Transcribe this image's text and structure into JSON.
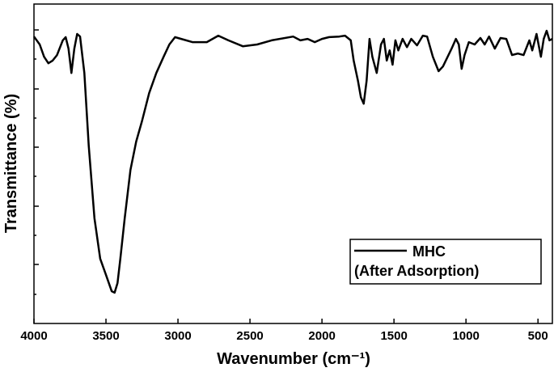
{
  "chart_data": {
    "type": "line",
    "x_label": "Wavenumber (cm⁻¹)",
    "y_label": "Transmittance (%)",
    "xlim": [
      4000,
      400
    ],
    "xticks": [
      4000,
      3500,
      3000,
      2500,
      2000,
      1500,
      1000,
      500
    ],
    "ylim": [
      0,
      109
    ],
    "legend": "upper right",
    "series": [
      {
        "name": "MHC\n(After Adsorption)",
        "color": "#000000",
        "x": [
          4000,
          3960,
          3930,
          3900,
          3870,
          3840,
          3800,
          3780,
          3760,
          3740,
          3720,
          3700,
          3680,
          3650,
          3620,
          3580,
          3540,
          3500,
          3460,
          3440,
          3420,
          3400,
          3370,
          3330,
          3290,
          3250,
          3200,
          3150,
          3100,
          3060,
          3020,
          3000,
          2900,
          2800,
          2720,
          2650,
          2550,
          2450,
          2350,
          2200,
          2150,
          2100,
          2050,
          2000,
          1950,
          1880,
          1840,
          1800,
          1780,
          1750,
          1730,
          1710,
          1690,
          1670,
          1650,
          1620,
          1590,
          1570,
          1550,
          1530,
          1510,
          1490,
          1470,
          1440,
          1410,
          1380,
          1340,
          1300,
          1270,
          1230,
          1190,
          1160,
          1100,
          1070,
          1050,
          1030,
          1010,
          980,
          940,
          900,
          870,
          840,
          800,
          760,
          720,
          680,
          640,
          600,
          560,
          540,
          510,
          480,
          460,
          440,
          420,
          400
        ],
        "values": [
          97.9,
          95.2,
          91,
          88.8,
          89.7,
          91.6,
          96.6,
          97.7,
          93.8,
          85.5,
          93.8,
          98.8,
          97.9,
          85.5,
          60.7,
          35.9,
          22.1,
          16.6,
          11,
          10.5,
          13.8,
          22.1,
          35.9,
          52.4,
          62.1,
          69,
          78.6,
          85.5,
          91,
          95.2,
          97.7,
          97.4,
          96,
          96,
          98.2,
          96.6,
          94.6,
          95.2,
          96.6,
          97.9,
          96.6,
          97.1,
          96,
          97.1,
          97.7,
          97.9,
          98.2,
          96.6,
          89.7,
          82.8,
          77.2,
          75,
          82.8,
          97.1,
          91,
          85.5,
          95.2,
          97.1,
          89.7,
          93.2,
          88.3,
          96.6,
          93.2,
          97.1,
          94.3,
          97.1,
          94.9,
          98.2,
          97.9,
          91,
          86.1,
          87.7,
          93.8,
          97.1,
          95.2,
          86.9,
          91.6,
          96,
          95.2,
          97.4,
          95.2,
          97.9,
          93.8,
          97.4,
          97.1,
          91.6,
          92.1,
          91.6,
          96.6,
          93.2,
          98.8,
          91,
          97.1,
          99.9,
          96.6,
          97.1
        ]
      }
    ]
  }
}
